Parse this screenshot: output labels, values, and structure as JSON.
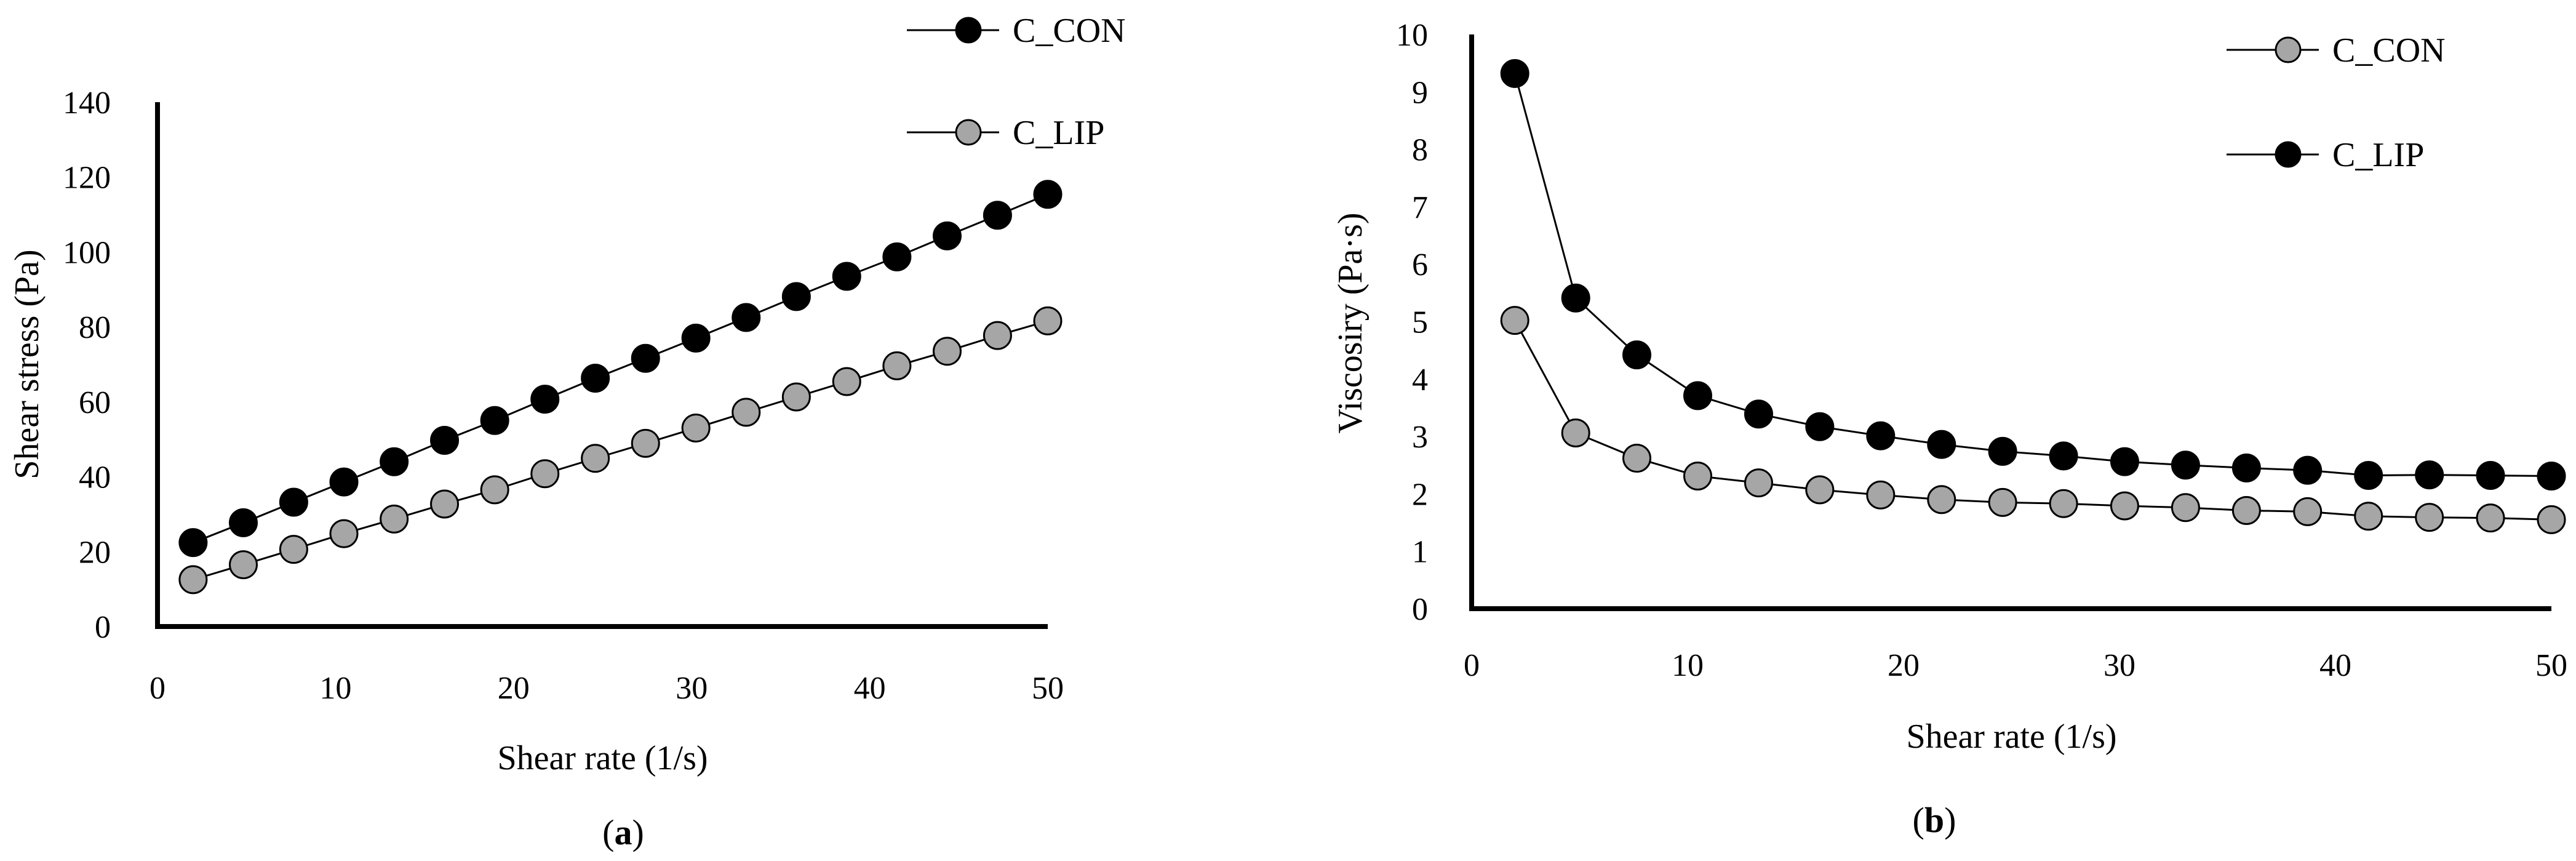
{
  "chart_data": [
    {
      "type": "line",
      "panel_label": "(a)",
      "panel_letter": "a",
      "xlabel": "Shear rate (1/s)",
      "ylabel": "Shear stress (Pa)",
      "xlim": [
        0,
        50
      ],
      "ylim": [
        0,
        140
      ],
      "xticks": [
        0,
        10,
        20,
        30,
        40,
        50
      ],
      "yticks": [
        0,
        20,
        40,
        60,
        80,
        100,
        120,
        140
      ],
      "grid": false,
      "legend_position": "top-right",
      "x": [
        2,
        4.82,
        7.65,
        10.47,
        13.29,
        16.12,
        18.94,
        21.76,
        24.59,
        27.41,
        30.24,
        33.06,
        35.88,
        38.71,
        41.53,
        44.35,
        47.18,
        50
      ],
      "series": [
        {
          "name": "C_CON",
          "color": "#000000",
          "values": [
            22.4,
            27.7,
            33.2,
            38.6,
            44.0,
            49.7,
            55.0,
            60.7,
            66.3,
            71.6,
            77.0,
            82.5,
            88.1,
            93.5,
            98.7,
            104.3,
            109.8,
            115.4
          ]
        },
        {
          "name": "C_LIP",
          "color": "#a6a6a6",
          "values": [
            12.5,
            16.5,
            20.6,
            24.8,
            28.7,
            32.7,
            36.5,
            40.8,
            44.9,
            48.9,
            53.0,
            57.2,
            61.3,
            65.4,
            69.6,
            73.5,
            77.7,
            81.6
          ]
        }
      ]
    },
    {
      "type": "line",
      "panel_label": "(b)",
      "panel_letter": "b",
      "xlabel": "Shear rate (1/s)",
      "ylabel": "Viscosiry (Pa·s)",
      "xlim": [
        0,
        50
      ],
      "ylim": [
        0,
        10
      ],
      "xticks": [
        0,
        10,
        20,
        30,
        40,
        50
      ],
      "yticks": [
        0,
        1,
        2,
        3,
        4,
        5,
        6,
        7,
        8,
        9,
        10
      ],
      "grid": false,
      "legend_position": "top-right",
      "x": [
        2,
        4.82,
        7.65,
        10.47,
        13.29,
        16.12,
        18.94,
        21.76,
        24.59,
        27.41,
        30.24,
        33.06,
        35.88,
        38.71,
        41.53,
        44.35,
        47.18,
        50
      ],
      "series": [
        {
          "name": "C_CON",
          "color": "#a6a6a6",
          "values": [
            5.02,
            3.06,
            2.62,
            2.31,
            2.19,
            2.07,
            1.98,
            1.9,
            1.85,
            1.83,
            1.79,
            1.76,
            1.71,
            1.69,
            1.61,
            1.59,
            1.58,
            1.55
          ]
        },
        {
          "name": "C_LIP",
          "color": "#000000",
          "values": [
            9.32,
            5.41,
            4.42,
            3.71,
            3.39,
            3.17,
            3.01,
            2.86,
            2.74,
            2.66,
            2.56,
            2.5,
            2.45,
            2.41,
            2.32,
            2.33,
            2.32,
            2.31
          ]
        }
      ]
    }
  ]
}
